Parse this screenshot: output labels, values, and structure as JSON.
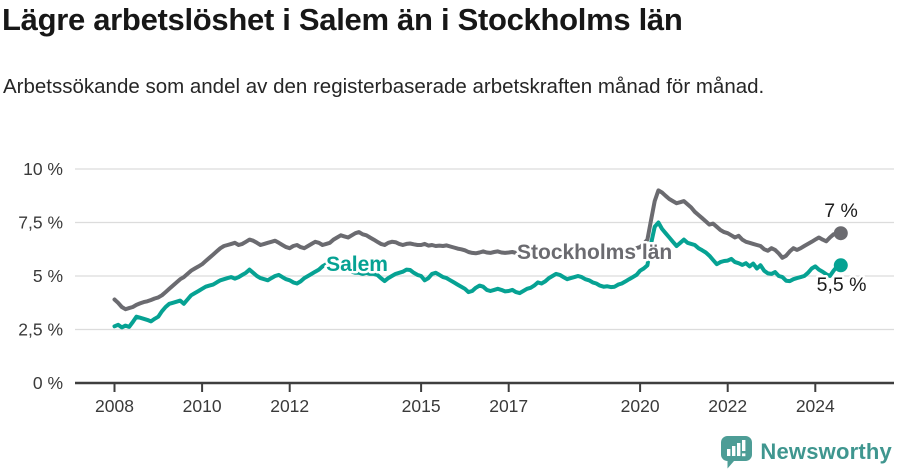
{
  "header": {
    "title": "Lägre arbetslöshet i Salem än i Stockholms län",
    "subtitle": "Arbetssökande som andel av den registerbaserade arbetskraften månad för månad."
  },
  "chart_data": {
    "type": "line",
    "title": "Lägre arbetslöshet i Salem än i Stockholms län",
    "xlabel": "",
    "ylabel": "",
    "ylim": [
      0,
      10
    ],
    "xlim": [
      2007.1,
      2025.8
    ],
    "grid": "horizontal",
    "legend_position": "inline-labels",
    "x_ticks": [
      2008,
      2010,
      2012,
      2015,
      2017,
      2020,
      2022,
      2024
    ],
    "y_ticks": [
      {
        "value": 0,
        "label": "0 %"
      },
      {
        "value": 2.5,
        "label": "2,5 %"
      },
      {
        "value": 5,
        "label": "5 %"
      },
      {
        "value": 7.5,
        "label": "7,5 %"
      },
      {
        "value": 10,
        "label": "10 %"
      }
    ],
    "series": [
      {
        "name": "Stockholms län",
        "color": "#6b6b70",
        "start_year": 2008,
        "points_per_year": 12,
        "end_dot": true,
        "end_value_label": "7 %",
        "values": [
          3.9,
          3.75,
          3.55,
          3.45,
          3.5,
          3.55,
          3.65,
          3.72,
          3.78,
          3.82,
          3.88,
          3.95,
          4.0,
          4.1,
          4.25,
          4.4,
          4.55,
          4.7,
          4.85,
          4.95,
          5.1,
          5.25,
          5.35,
          5.45,
          5.55,
          5.7,
          5.85,
          6.0,
          6.15,
          6.3,
          6.4,
          6.45,
          6.5,
          6.55,
          6.45,
          6.5,
          6.6,
          6.7,
          6.65,
          6.55,
          6.45,
          6.5,
          6.55,
          6.6,
          6.65,
          6.55,
          6.45,
          6.35,
          6.3,
          6.4,
          6.45,
          6.35,
          6.3,
          6.4,
          6.5,
          6.6,
          6.55,
          6.45,
          6.5,
          6.55,
          6.7,
          6.8,
          6.9,
          6.85,
          6.8,
          6.9,
          7.0,
          7.05,
          6.95,
          6.9,
          6.8,
          6.7,
          6.6,
          6.5,
          6.45,
          6.55,
          6.6,
          6.58,
          6.5,
          6.45,
          6.5,
          6.52,
          6.48,
          6.45,
          6.45,
          6.5,
          6.42,
          6.45,
          6.4,
          6.42,
          6.4,
          6.43,
          6.38,
          6.33,
          6.28,
          6.25,
          6.2,
          6.12,
          6.08,
          6.06,
          6.1,
          6.15,
          6.1,
          6.08,
          6.12,
          6.15,
          6.1,
          6.08,
          6.1,
          6.12,
          6.08,
          6.1,
          6.12,
          6.1,
          6.08,
          6.1,
          6.12,
          6.1,
          6.08,
          6.1,
          6.12,
          6.1,
          6.08,
          6.1,
          6.12,
          6.1,
          6.08,
          6.05,
          6.08,
          6.1,
          6.08,
          6.05,
          6.02,
          6.0,
          5.98,
          6.0,
          6.02,
          6.05,
          6.08,
          6.1,
          6.15,
          6.2,
          6.25,
          6.3,
          6.35,
          6.5,
          6.7,
          7.6,
          8.5,
          9.0,
          8.9,
          8.75,
          8.6,
          8.5,
          8.4,
          8.45,
          8.5,
          8.35,
          8.2,
          8.0,
          7.85,
          7.7,
          7.55,
          7.4,
          7.45,
          7.3,
          7.15,
          7.05,
          7.0,
          6.9,
          6.8,
          6.88,
          6.7,
          6.6,
          6.55,
          6.5,
          6.45,
          6.4,
          6.25,
          6.18,
          6.3,
          6.22,
          6.05,
          5.85,
          5.95,
          6.15,
          6.3,
          6.22,
          6.3,
          6.4,
          6.5,
          6.6,
          6.7,
          6.8,
          6.7,
          6.62,
          6.8,
          6.95,
          7.0,
          7.0
        ]
      },
      {
        "name": "Salem",
        "color": "#06a293",
        "start_year": 2008,
        "points_per_year": 12,
        "end_dot": true,
        "end_value_label": "5,5 %",
        "values": [
          2.65,
          2.72,
          2.6,
          2.68,
          2.62,
          2.85,
          3.1,
          3.05,
          3.0,
          2.95,
          2.88,
          3.0,
          3.1,
          3.35,
          3.55,
          3.7,
          3.75,
          3.8,
          3.85,
          3.7,
          3.9,
          4.1,
          4.2,
          4.3,
          4.4,
          4.5,
          4.55,
          4.6,
          4.7,
          4.8,
          4.85,
          4.9,
          4.95,
          4.88,
          4.95,
          5.05,
          5.15,
          5.3,
          5.15,
          5.0,
          4.9,
          4.85,
          4.8,
          4.9,
          5.0,
          5.05,
          4.95,
          4.85,
          4.8,
          4.7,
          4.65,
          4.75,
          4.9,
          5.0,
          5.1,
          5.2,
          5.3,
          5.45,
          5.55,
          5.5,
          5.35,
          5.3,
          5.4,
          5.45,
          5.35,
          5.2,
          5.15,
          5.15,
          5.1,
          5.15,
          5.1,
          5.1,
          5.05,
          4.9,
          4.76,
          4.9,
          5.0,
          5.1,
          5.15,
          5.2,
          5.3,
          5.28,
          5.15,
          5.05,
          5.0,
          4.8,
          4.9,
          5.1,
          5.15,
          5.05,
          4.95,
          4.9,
          4.8,
          4.7,
          4.6,
          4.5,
          4.4,
          4.25,
          4.3,
          4.45,
          4.55,
          4.5,
          4.35,
          4.3,
          4.35,
          4.4,
          4.35,
          4.28,
          4.3,
          4.35,
          4.25,
          4.2,
          4.3,
          4.4,
          4.45,
          4.55,
          4.7,
          4.65,
          4.75,
          4.9,
          5.0,
          5.1,
          5.05,
          4.95,
          4.85,
          4.9,
          4.95,
          5.0,
          4.95,
          4.85,
          4.8,
          4.7,
          4.65,
          4.55,
          4.5,
          4.52,
          4.48,
          4.5,
          4.6,
          4.65,
          4.75,
          4.85,
          4.95,
          5.05,
          5.25,
          5.35,
          5.5,
          6.5,
          7.3,
          7.5,
          7.2,
          7.0,
          6.8,
          6.6,
          6.4,
          6.55,
          6.7,
          6.55,
          6.5,
          6.45,
          6.3,
          6.2,
          6.1,
          5.95,
          5.75,
          5.55,
          5.65,
          5.7,
          5.72,
          5.8,
          5.65,
          5.6,
          5.52,
          5.6,
          5.45,
          5.58,
          5.35,
          5.5,
          5.25,
          5.12,
          5.1,
          5.18,
          5.0,
          4.95,
          4.78,
          4.76,
          4.85,
          4.9,
          4.95,
          5.0,
          5.15,
          5.35,
          5.45,
          5.3,
          5.2,
          5.08,
          5.0,
          5.25,
          5.45,
          5.5
        ]
      }
    ],
    "annotations": [
      {
        "id": "series-label-salem",
        "text": "Salem",
        "x": 2012.83,
        "y": 5.23,
        "color": "#06a293",
        "anchor": "start",
        "size": 21,
        "bold": true
      },
      {
        "id": "series-label-stockholms-lan",
        "text": "Stockholms län",
        "x": 2017.19,
        "y": 5.79,
        "color": "#6b6b70",
        "anchor": "start",
        "size": 21,
        "bold": true
      },
      {
        "id": "end-value-label-stockholms-lan",
        "text": "7 %",
        "x": 2024.97,
        "y": 7.76,
        "color": "#1b1b1b",
        "anchor": "end",
        "size": 19.5,
        "bold": false
      },
      {
        "id": "end-value-label-salem",
        "text": "5,5 %",
        "x": 2025.17,
        "y": 4.3,
        "color": "#1b1b1b",
        "anchor": "end",
        "size": 19.5,
        "bold": false
      }
    ],
    "colors": {
      "gridline": "#dcdcdc",
      "axis": "#3e3e3e",
      "tick_label": "#3a3a3a"
    }
  },
  "footer": {
    "brand": "Newsworthy",
    "brand_color": "#3f968f",
    "icon_color": "#4d9d96"
  }
}
